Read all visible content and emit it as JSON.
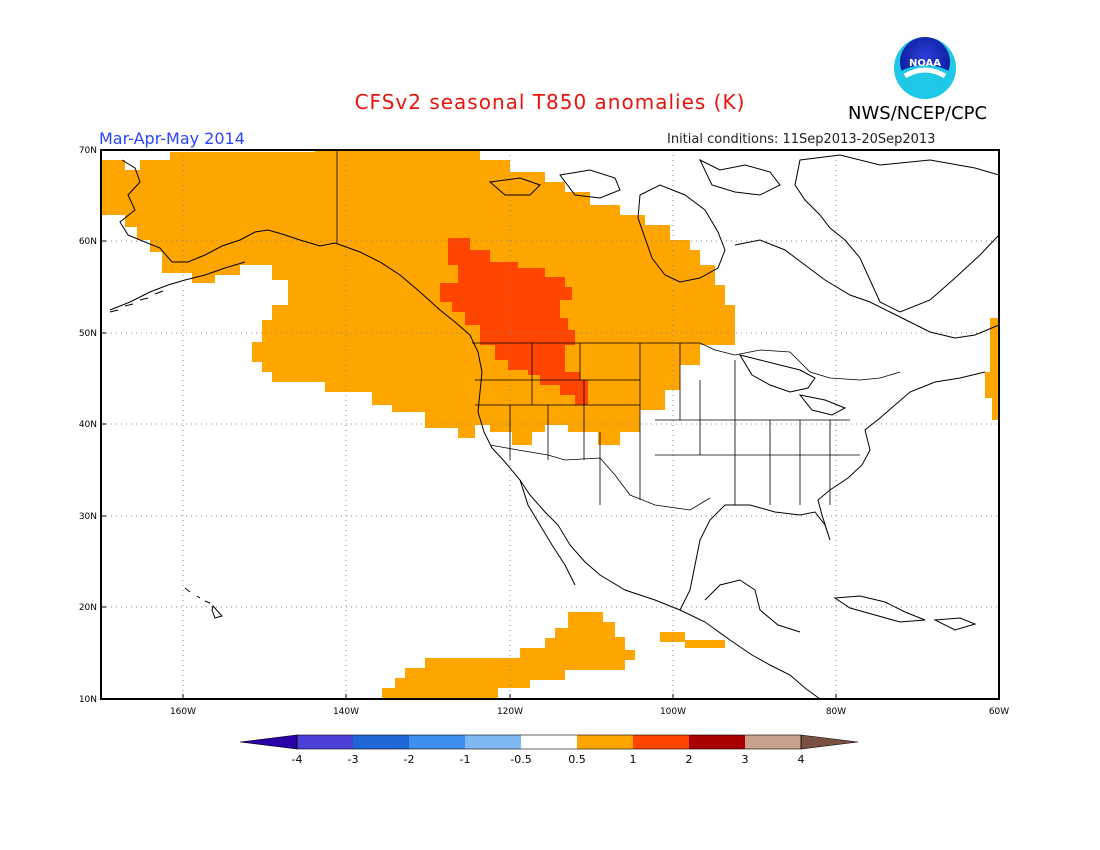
{
  "header": {
    "title": "CFSv2 seasonal T850 anomalies (K)",
    "agency": "NWS/NCEP/CPC",
    "period": "Mar-Apr-May 2014",
    "initial_conditions": "Initial conditions: 11Sep2013-20Sep2013",
    "logo_text": "NOAA"
  },
  "map": {
    "lat_labels": [
      "70N",
      "60N",
      "50N",
      "40N",
      "30N",
      "20N",
      "10N"
    ],
    "lon_labels": [
      "160W",
      "140W",
      "120W",
      "100W",
      "80W",
      "60W"
    ],
    "lat_range": [
      10,
      70
    ],
    "lon_range": [
      -170,
      -60
    ],
    "grid_style": "dotted"
  },
  "colorbar": {
    "labels": [
      "-4",
      "-3",
      "-2",
      "-1",
      "-0.5",
      "0.5",
      "1",
      "2",
      "3",
      "4"
    ],
    "colors": [
      "#2a00a8",
      "#4c3fd8",
      "#1f66d6",
      "#3f8ff0",
      "#7fb8f2",
      "#ffffff",
      "#ffa500",
      "#ff4500",
      "#a80000",
      "#c9a08c",
      "#7a5040"
    ]
  },
  "anomaly_regions": [
    {
      "level": "0.5 to 1",
      "color": "#ffa500",
      "area": "Alaska, western Canada, northwestern US, Hudson Bay region"
    },
    {
      "level": "1 to 2",
      "color": "#ff4500",
      "area": "British Columbia, Alberta, Montana"
    },
    {
      "level": "0.5 to 1",
      "color": "#ffa500",
      "area": "Eastern Pacific southwest of Mexico"
    },
    {
      "level": "0.5 to 1",
      "color": "#ffa500",
      "area": "Central America Pacific coast"
    },
    {
      "level": "0.5 to 1",
      "color": "#ffa500",
      "area": "Nova Scotia edge"
    }
  ]
}
